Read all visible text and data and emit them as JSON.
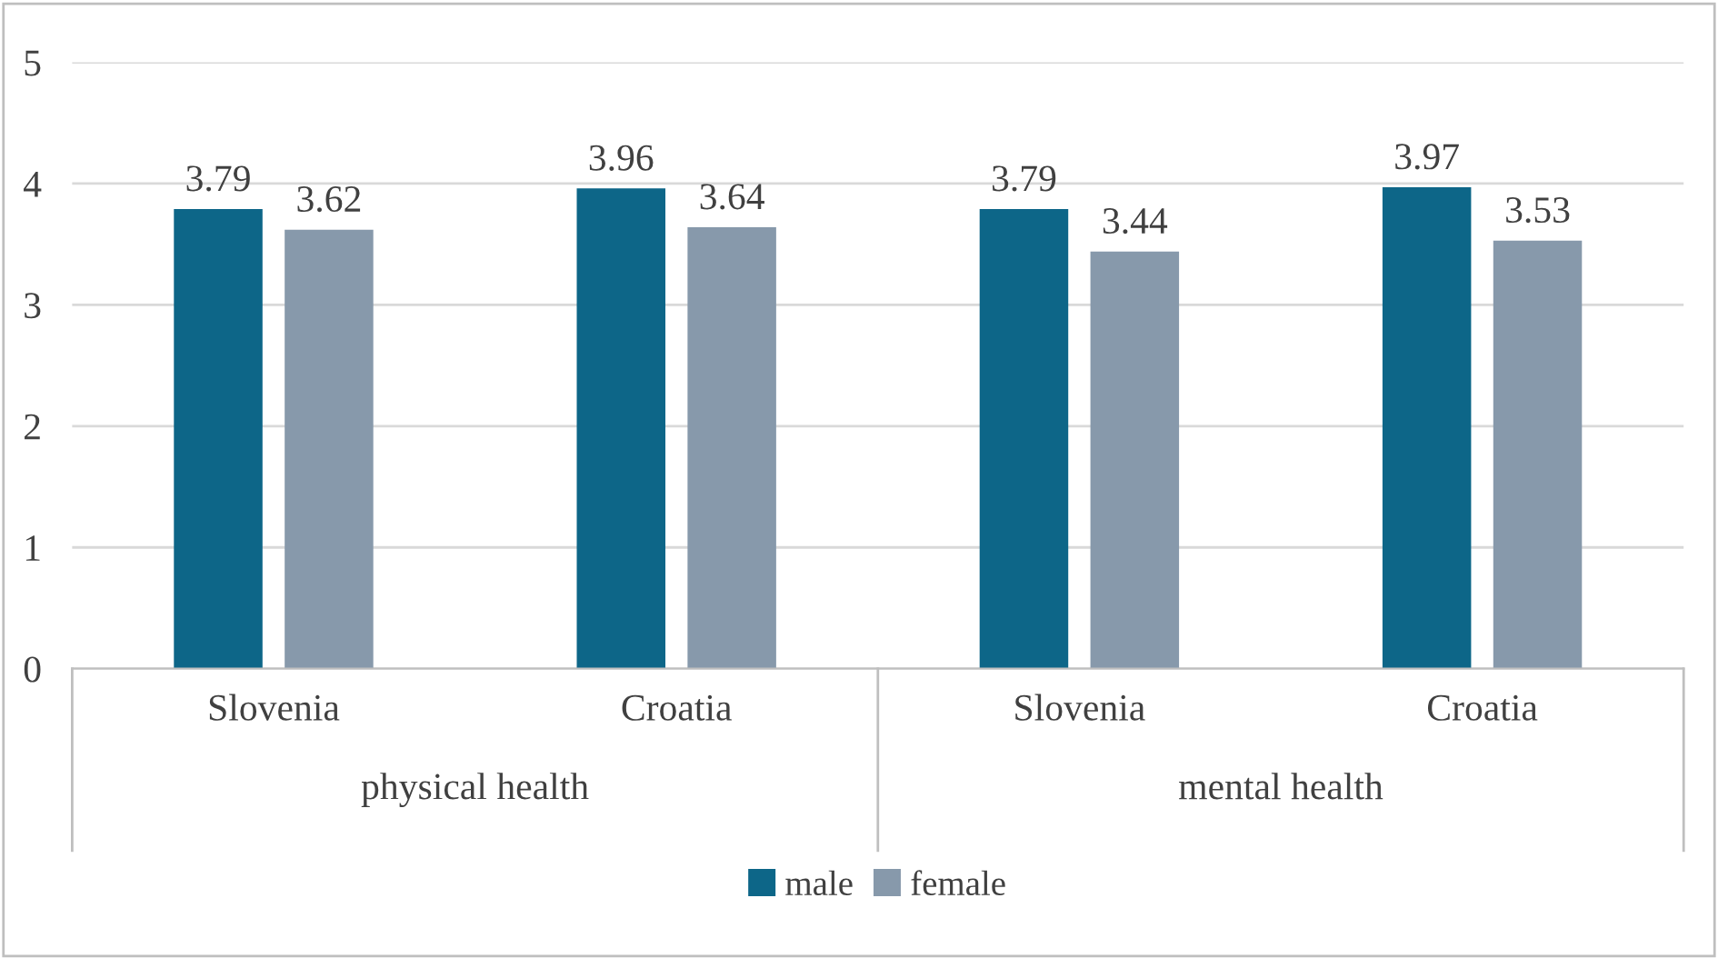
{
  "chart_data": {
    "type": "bar",
    "categories": [
      "Slovenia",
      "Croatia",
      "Slovenia",
      "Croatia"
    ],
    "series": [
      {
        "name": "male",
        "color": "#0d6688",
        "values": [
          3.79,
          3.96,
          3.79,
          3.97
        ]
      },
      {
        "name": "female",
        "color": "#8799ab",
        "values": [
          3.62,
          3.64,
          3.44,
          3.53
        ]
      }
    ],
    "annotations": [
      "physical health",
      "mental health"
    ],
    "ylim": [
      0,
      5
    ],
    "yticks": [
      0,
      1,
      2,
      3,
      4,
      5
    ],
    "grid": "y",
    "legend": "bottom",
    "data_labels": true
  }
}
